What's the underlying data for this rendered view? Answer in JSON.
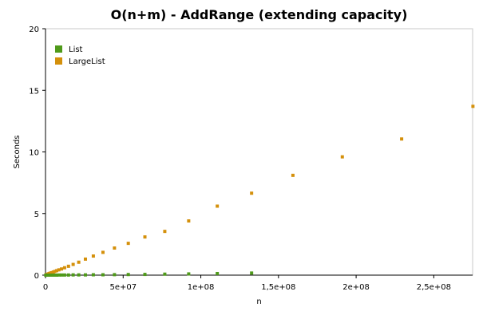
{
  "chart_data": {
    "type": "scatter",
    "title": "O(n+m) - AddRange (extending capacity)",
    "xlabel": "n",
    "ylabel": "Seconds",
    "xlim": [
      0,
      275000000
    ],
    "ylim": [
      0,
      20
    ],
    "x_ticks": [
      0,
      50000000,
      100000000,
      150000000,
      200000000,
      250000000
    ],
    "x_tick_labels": [
      "0",
      "5e+07",
      "1e+08",
      "1,5e+08",
      "2e+08",
      "2,5e+08"
    ],
    "y_ticks": [
      0,
      5,
      10,
      15,
      20
    ],
    "y_tick_labels": [
      "0",
      "5",
      "10",
      "15",
      "20"
    ],
    "grid": false,
    "legend_position": "top-left",
    "series": [
      {
        "name": "List",
        "color": "#4f9a1a",
        "x": [
          200000,
          600000,
          1000000,
          1500000,
          2000000,
          2600000,
          3300000,
          4000000,
          5000000,
          6000000,
          7200000,
          8600000,
          10300000,
          12300000,
          14800000,
          17800000,
          21400000,
          25700000,
          30800000,
          37000000,
          44400000,
          53300000,
          64000000,
          76800000,
          92200000,
          110600000,
          132700000
        ],
        "y": [
          0,
          0,
          0,
          0,
          0,
          0,
          0,
          0,
          0,
          0,
          0,
          0.01,
          0.01,
          0.01,
          0.01,
          0.02,
          0.02,
          0.02,
          0.03,
          0.03,
          0.04,
          0.05,
          0.06,
          0.08,
          0.1,
          0.13,
          0.17
        ]
      },
      {
        "name": "LargeList",
        "color": "#d4900b",
        "x": [
          200000,
          600000,
          1000000,
          1500000,
          2000000,
          2600000,
          3300000,
          4000000,
          5000000,
          6000000,
          7200000,
          8600000,
          10300000,
          12300000,
          14800000,
          17800000,
          21400000,
          25700000,
          30800000,
          37000000,
          44400000,
          53300000,
          64000000,
          76800000,
          92200000,
          110600000,
          132700000,
          159300000,
          191100000,
          229300000,
          275200000
        ],
        "y": [
          0.01,
          0.03,
          0.05,
          0.08,
          0.11,
          0.14,
          0.17,
          0.2,
          0.25,
          0.3,
          0.36,
          0.43,
          0.5,
          0.6,
          0.72,
          0.87,
          1.05,
          1.3,
          1.55,
          1.85,
          2.2,
          2.58,
          3.1,
          3.55,
          4.4,
          5.6,
          6.65,
          8.1,
          9.6,
          11.05,
          13.7
        ]
      }
    ]
  }
}
